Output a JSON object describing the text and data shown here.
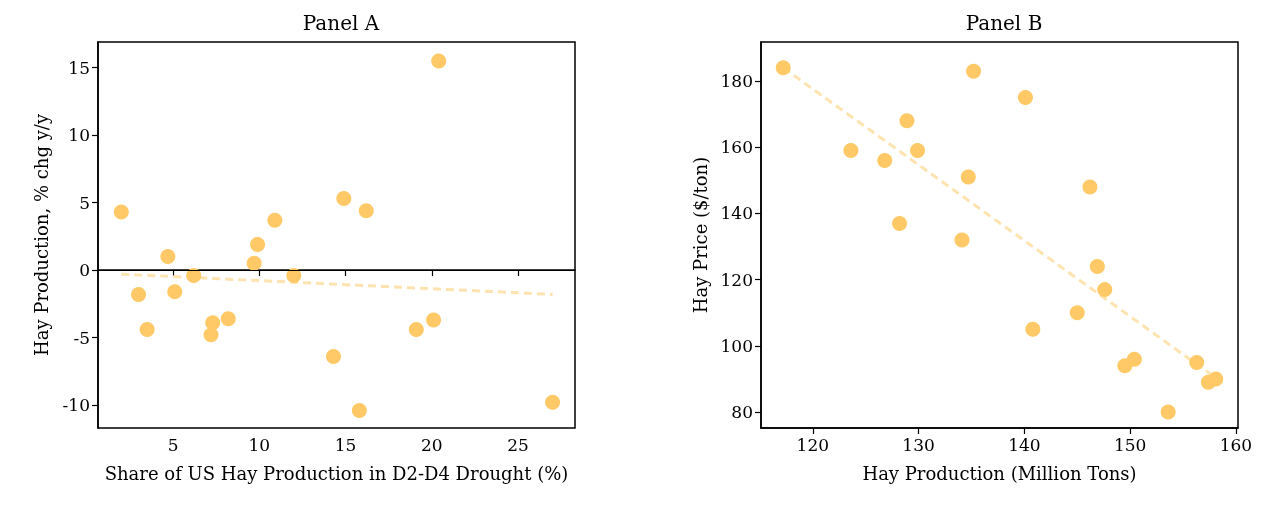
{
  "chart_data": [
    {
      "type": "scatter",
      "title": "Panel A",
      "xlabel": "Share of US Hay Production in D2-D4 Drought (%)",
      "ylabel": "Hay Production, % chg y/y",
      "xlim": [
        0.65,
        28.3
      ],
      "xticks": [
        5,
        10,
        15,
        20,
        25
      ],
      "ylim": [
        -11.7,
        16.9
      ],
      "yticks": [
        -10,
        -5,
        0,
        5,
        10,
        15
      ],
      "grid": false,
      "marker": "circle",
      "ref_lines": [
        {
          "axis": "y",
          "value": 0,
          "color": "#000000"
        }
      ],
      "series": [
        {
          "type": "scatter",
          "color": "#fec966",
          "x": [
            2.0,
            3.0,
            3.5,
            4.7,
            5.1,
            6.2,
            7.2,
            7.3,
            8.2,
            9.7,
            9.9,
            10.9,
            12.0,
            14.3,
            14.9,
            15.8,
            16.2,
            19.1,
            20.1,
            20.4,
            27.0
          ],
          "values": [
            4.3,
            -1.8,
            -4.4,
            1.0,
            -1.6,
            -0.4,
            -4.8,
            -3.9,
            -3.6,
            0.5,
            1.9,
            3.7,
            -0.4,
            -6.4,
            5.3,
            -10.4,
            4.4,
            -4.4,
            -3.7,
            15.5,
            -9.8
          ]
        },
        {
          "type": "line",
          "color": "#fde3b0",
          "line_style": "dashed",
          "marker": "none",
          "x": [
            2.0,
            27.0
          ],
          "values": [
            -0.3,
            -1.8
          ]
        }
      ]
    },
    {
      "type": "scatter",
      "title": "Panel B",
      "xlabel": "Hay Production (Million Tons)",
      "ylabel": "Hay Price ($/ton)",
      "xlim": [
        115.1,
        160.2
      ],
      "xticks": [
        120,
        130,
        140,
        150,
        160
      ],
      "ylim": [
        75.2,
        191.8
      ],
      "yticks": [
        80,
        100,
        120,
        140,
        160,
        180
      ],
      "grid": false,
      "marker": "circle",
      "series": [
        {
          "type": "scatter",
          "color": "#fec966",
          "x": [
            117.2,
            123.6,
            126.8,
            128.2,
            128.9,
            129.9,
            134.1,
            134.7,
            135.2,
            140.1,
            140.8,
            145.0,
            146.2,
            146.9,
            147.6,
            149.5,
            150.4,
            153.6,
            156.3,
            157.4,
            158.1
          ],
          "values": [
            184,
            159,
            156,
            137,
            168,
            159,
            132,
            151,
            183,
            175,
            105,
            110,
            148,
            124,
            117,
            94,
            96,
            80,
            95,
            89,
            90
          ]
        },
        {
          "type": "line",
          "color": "#fde3b0",
          "line_style": "dashed",
          "marker": "none",
          "x": [
            117.2,
            157.6
          ],
          "values": [
            184,
            91.5
          ]
        }
      ]
    }
  ]
}
